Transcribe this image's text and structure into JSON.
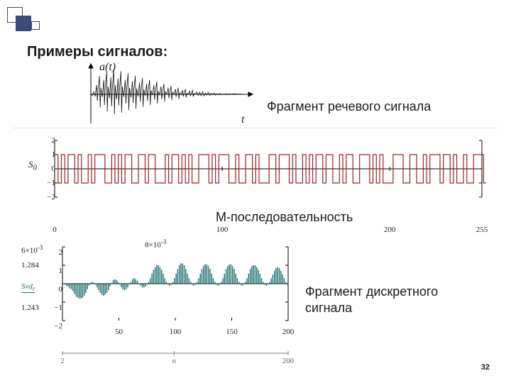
{
  "decor": {
    "outline_color": "#3a4a7a",
    "fill_color": "#3a4a7a"
  },
  "title": "Примеры сигналов:",
  "captions": {
    "speech": "Фрагмент речевого сигнала",
    "mseq": "М-последовательность",
    "discrete_l1": "Фрагмент дискретного",
    "discrete_l2": "сигнала"
  },
  "speech_chart": {
    "type": "line",
    "ylabel": "a(t)",
    "xlabel": "t",
    "stroke": "#111111",
    "axis_color": "#000000",
    "background": "#ffffff",
    "xlim": [
      0,
      220
    ],
    "ylim": [
      -1,
      1
    ],
    "points": [
      [
        0,
        0.02
      ],
      [
        2,
        -0.05
      ],
      [
        4,
        0.1
      ],
      [
        6,
        -0.08
      ],
      [
        8,
        0.35
      ],
      [
        9,
        -0.25
      ],
      [
        10,
        0.15
      ],
      [
        12,
        0.7
      ],
      [
        13,
        -0.5
      ],
      [
        14,
        0.25
      ],
      [
        16,
        -0.1
      ],
      [
        18,
        0.55
      ],
      [
        19,
        -0.4
      ],
      [
        20,
        0.2
      ],
      [
        22,
        0.85
      ],
      [
        23,
        -0.65
      ],
      [
        24,
        0.3
      ],
      [
        26,
        -0.15
      ],
      [
        28,
        0.65
      ],
      [
        29,
        -0.45
      ],
      [
        30,
        0.22
      ],
      [
        32,
        0.95
      ],
      [
        33,
        -0.75
      ],
      [
        34,
        0.35
      ],
      [
        36,
        -0.18
      ],
      [
        38,
        0.6
      ],
      [
        39,
        -0.42
      ],
      [
        40,
        0.2
      ],
      [
        42,
        0.88
      ],
      [
        43,
        -0.7
      ],
      [
        44,
        0.3
      ],
      [
        46,
        -0.1
      ],
      [
        48,
        0.55
      ],
      [
        49,
        -0.35
      ],
      [
        50,
        0.18
      ],
      [
        52,
        0.8
      ],
      [
        53,
        -0.6
      ],
      [
        54,
        0.25
      ],
      [
        56,
        -0.12
      ],
      [
        58,
        0.5
      ],
      [
        59,
        -0.32
      ],
      [
        60,
        0.15
      ],
      [
        62,
        0.7
      ],
      [
        63,
        -0.55
      ],
      [
        64,
        0.22
      ],
      [
        66,
        -0.08
      ],
      [
        68,
        0.45
      ],
      [
        69,
        -0.28
      ],
      [
        70,
        0.12
      ],
      [
        72,
        0.62
      ],
      [
        73,
        -0.48
      ],
      [
        74,
        0.18
      ],
      [
        76,
        -0.05
      ],
      [
        78,
        0.4
      ],
      [
        79,
        -0.25
      ],
      [
        80,
        0.1
      ],
      [
        82,
        0.55
      ],
      [
        83,
        -0.4
      ],
      [
        84,
        0.15
      ],
      [
        86,
        -0.03
      ],
      [
        88,
        0.35
      ],
      [
        89,
        -0.2
      ],
      [
        90,
        0.08
      ],
      [
        92,
        0.48
      ],
      [
        93,
        -0.35
      ],
      [
        94,
        0.12
      ],
      [
        96,
        -0.02
      ],
      [
        98,
        0.3
      ],
      [
        99,
        -0.18
      ],
      [
        100,
        0.06
      ],
      [
        102,
        0.4
      ],
      [
        103,
        -0.28
      ],
      [
        104,
        0.1
      ],
      [
        106,
        0
      ],
      [
        108,
        0.25
      ],
      [
        109,
        -0.15
      ],
      [
        110,
        0.05
      ],
      [
        112,
        0.32
      ],
      [
        113,
        -0.22
      ],
      [
        114,
        0.08
      ],
      [
        116,
        0
      ],
      [
        118,
        0.2
      ],
      [
        119,
        -0.1
      ],
      [
        120,
        0.04
      ],
      [
        122,
        0.25
      ],
      [
        123,
        -0.17
      ],
      [
        124,
        0.06
      ],
      [
        126,
        0
      ],
      [
        128,
        0.16
      ],
      [
        129,
        -0.08
      ],
      [
        130,
        0.03
      ],
      [
        132,
        0.2
      ],
      [
        133,
        -0.12
      ],
      [
        134,
        0.04
      ],
      [
        136,
        0
      ],
      [
        138,
        0.12
      ],
      [
        139,
        -0.06
      ],
      [
        140,
        0.02
      ],
      [
        142,
        0.15
      ],
      [
        143,
        -0.09
      ],
      [
        144,
        0.03
      ],
      [
        146,
        0
      ],
      [
        148,
        0.09
      ],
      [
        150,
        -0.04
      ],
      [
        152,
        0.08
      ],
      [
        154,
        -0.05
      ],
      [
        156,
        0.1
      ],
      [
        158,
        -0.06
      ],
      [
        160,
        0.05
      ],
      [
        162,
        -0.03
      ],
      [
        164,
        0.07
      ],
      [
        166,
        -0.04
      ],
      [
        168,
        0.04
      ],
      [
        170,
        -0.02
      ],
      [
        172,
        0.05
      ],
      [
        174,
        -0.03
      ],
      [
        176,
        0.03
      ],
      [
        178,
        -0.02
      ],
      [
        180,
        0.04
      ],
      [
        182,
        -0.02
      ],
      [
        184,
        0.02
      ],
      [
        186,
        -0.01
      ],
      [
        188,
        0.03
      ],
      [
        190,
        -0.02
      ],
      [
        192,
        0.02
      ],
      [
        196,
        0.01
      ],
      [
        200,
        0.02
      ],
      [
        205,
        0.01
      ],
      [
        210,
        0.01
      ],
      [
        215,
        0
      ],
      [
        220,
        0
      ]
    ]
  },
  "mseq_chart": {
    "type": "step",
    "stroke": "#a02020",
    "axis_color": "#000000",
    "background": "#ffffff",
    "xlim": [
      0,
      255
    ],
    "ylim": [
      -2,
      2
    ],
    "yticks": [
      -2,
      -1,
      0,
      1,
      2
    ],
    "ytick_labels": [
      "2",
      "1",
      "0",
      "1",
      "2"
    ],
    "yminus": "−",
    "left_text_top": "S",
    "left_text_sub": "0",
    "xticks": [
      0,
      100,
      200,
      255
    ],
    "xtick_labels": [
      "0",
      "100",
      "200",
      "255"
    ],
    "levels": [
      1,
      -1,
      1,
      -1,
      1,
      1,
      -1,
      1,
      -1,
      -1,
      1,
      -1,
      1,
      1,
      1,
      -1,
      -1,
      1,
      -1,
      1,
      -1,
      1,
      1,
      -1,
      -1,
      1,
      1,
      -1,
      1,
      1,
      -1,
      -1,
      -1,
      1,
      -1,
      1,
      1,
      -1,
      1,
      -1,
      1,
      -1,
      -1,
      1,
      1,
      1,
      -1,
      1,
      -1,
      1,
      1,
      1,
      -1,
      -1,
      1,
      -1,
      -1,
      1,
      1,
      -1,
      1,
      -1,
      -1,
      -1,
      1,
      1,
      -1,
      1,
      1,
      1,
      -1,
      1,
      -1,
      -1,
      1,
      -1,
      1,
      -1,
      1,
      1,
      -1,
      1,
      1,
      -1,
      -1,
      1,
      -1,
      1,
      1,
      -1,
      -1,
      1,
      1,
      1,
      -1,
      1,
      -1,
      1,
      -1,
      -1,
      -1,
      1,
      1,
      1,
      -1,
      -1,
      1,
      1,
      -1,
      -1,
      1,
      -1,
      1,
      1,
      1,
      -1,
      1,
      1,
      -1,
      1,
      -1,
      -1,
      1,
      -1,
      -1,
      1,
      1,
      1,
      -1
    ],
    "level_len": 2
  },
  "discrete_chart": {
    "type": "bar",
    "stroke": "#1a6e6e",
    "fill": "#1a6e6e",
    "axis_color": "#000000",
    "background": "#ffffff",
    "xlim": [
      0,
      200
    ],
    "ylim": [
      -2,
      2
    ],
    "yticks": [
      -2,
      -1,
      0,
      1,
      2
    ],
    "ytick_labels": [
      "2",
      "1",
      "0",
      "1",
      "2"
    ],
    "yminus": "−",
    "top_label": "8×10",
    "top_label_sup": "-3",
    "xticks": [
      50,
      100,
      150,
      200
    ],
    "xtick_labels": [
      "50",
      "100",
      "150",
      "200"
    ],
    "left_labels": [
      "6×10",
      "1.284",
      "Svd",
      "1.243"
    ],
    "left_sup": "-3",
    "left_sub": "r",
    "values": [
      0,
      -0.05,
      -0.1,
      -0.15,
      -0.25,
      -0.3,
      -0.4,
      -0.55,
      -0.7,
      -0.75,
      -0.8,
      -0.8,
      -0.75,
      -0.65,
      -0.5,
      -0.3,
      -0.1,
      0.05,
      0.1,
      0.05,
      -0.05,
      -0.2,
      -0.35,
      -0.5,
      -0.6,
      -0.65,
      -0.6,
      -0.5,
      -0.35,
      -0.15,
      0.05,
      0.2,
      0.25,
      0.2,
      0.1,
      -0.05,
      -0.2,
      -0.3,
      -0.35,
      -0.3,
      -0.2,
      -0.05,
      0.1,
      0.25,
      0.3,
      0.25,
      0.15,
      0,
      -0.1,
      -0.2,
      -0.2,
      -0.15,
      -0.05,
      0.1,
      0.3,
      0.55,
      0.75,
      0.9,
      1.0,
      1.0,
      0.9,
      0.75,
      0.55,
      0.3,
      0.1,
      -0.05,
      -0.1,
      -0.05,
      0.1,
      0.3,
      0.55,
      0.8,
      1.0,
      1.1,
      1.1,
      1.0,
      0.8,
      0.55,
      0.3,
      0.1,
      -0.05,
      -0.1,
      -0.05,
      0.1,
      0.3,
      0.55,
      0.8,
      0.95,
      1.05,
      1.05,
      0.95,
      0.8,
      0.55,
      0.3,
      0.1,
      -0.05,
      -0.1,
      -0.05,
      0.1,
      0.3,
      0.55,
      0.8,
      0.95,
      1.05,
      1.05,
      0.95,
      0.8,
      0.55,
      0.3,
      0.1,
      -0.05,
      -0.1,
      -0.05,
      0.1,
      0.3,
      0.55,
      0.8,
      0.95,
      1.0,
      1.0,
      0.9,
      0.75,
      0.55,
      0.3,
      0.1,
      -0.05,
      -0.1,
      -0.05,
      0.1,
      0.3,
      0.5,
      0.7,
      0.85,
      0.9,
      0.85,
      0.7,
      0.5,
      0.3,
      0.1,
      -0.05
    ]
  },
  "bottom_axis": {
    "xticks": [
      2,
      100,
      200
    ],
    "xtick_labels": [
      "2",
      "n",
      "200"
    ],
    "stroke": "#808080"
  },
  "page_number": "32"
}
